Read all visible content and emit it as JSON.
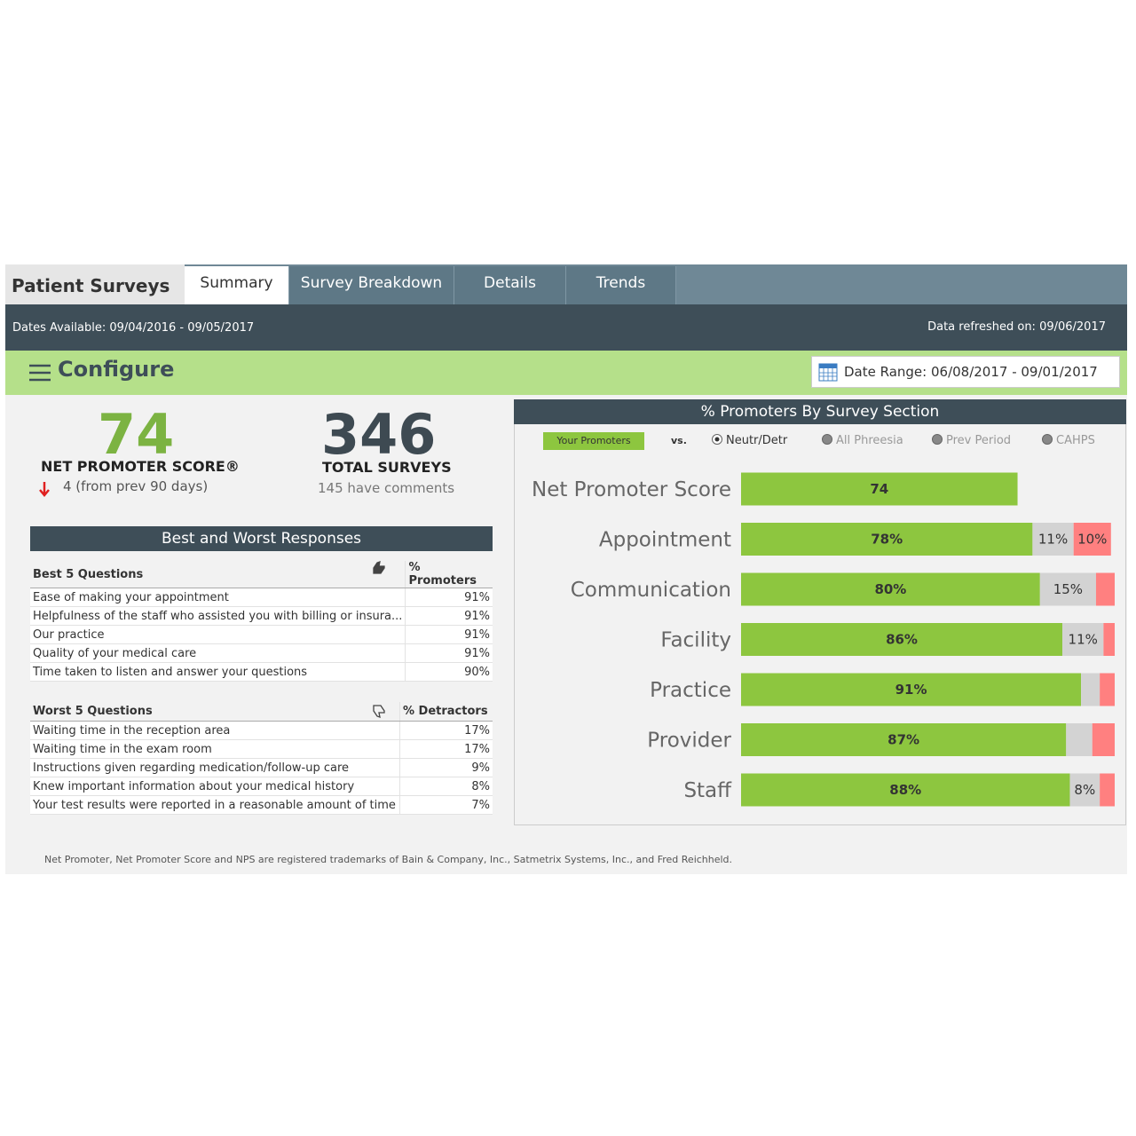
{
  "header": {
    "title": "Patient Surveys",
    "tabs": [
      "Summary",
      "Survey Breakdown",
      "Details",
      "Trends"
    ],
    "active_tab": 0,
    "dates_available": "Dates Available: 09/04/2016 - 09/05/2017",
    "data_refreshed": "Data refreshed on: 09/06/2017"
  },
  "configure": {
    "label": "Configure",
    "date_range": "Date Range: 06/08/2017 - 09/01/2017"
  },
  "kpis": {
    "nps": {
      "value": 74,
      "label": "NET PROMOTER SCORE®",
      "change": "4 (from prev 90 days)"
    },
    "surveys": {
      "value": 346,
      "label": "TOTAL SURVEYS",
      "comments": "145 have comments"
    }
  },
  "responses": {
    "title": "Best and Worst Responses",
    "best": {
      "header": [
        "Best 5 Questions",
        "% Promoters"
      ],
      "rows": [
        [
          "Ease of making your appointment",
          "91%"
        ],
        [
          "Helpfulness of the staff who assisted you with billing or insura...",
          "91%"
        ],
        [
          "Our practice",
          "91%"
        ],
        [
          "Quality of your medical care",
          "91%"
        ],
        [
          "Time taken to listen and answer your questions",
          "90%"
        ]
      ]
    },
    "worst": {
      "header": [
        "Worst 5 Questions",
        "% Detractors"
      ],
      "rows": [
        [
          "Waiting time in the reception area",
          "17%"
        ],
        [
          "Waiting time in the exam room",
          "17%"
        ],
        [
          "Instructions given regarding medication/follow-up care",
          "9%"
        ],
        [
          "Knew important information about your medical history",
          "8%"
        ],
        [
          "Your test results were reported in a reasonable amount of time",
          "7%"
        ]
      ]
    }
  },
  "chart_data": {
    "type": "bar",
    "orientation": "horizontal",
    "stacked": true,
    "title": "% Promoters By Survey Section",
    "legend": {
      "label": "Your Promoters",
      "versus": "vs."
    },
    "options": [
      {
        "label": "Neutr/Detr",
        "selected": true
      },
      {
        "label": "All Phreesia",
        "selected": false
      },
      {
        "label": "Prev Period",
        "selected": false
      },
      {
        "label": "CAHPS",
        "selected": false
      }
    ],
    "categories": [
      "Net Promoter Score",
      "Appointment",
      "Communication",
      "Facility",
      "Practice",
      "Provider",
      "Staff"
    ],
    "xlim": [
      0,
      100
    ],
    "series": [
      {
        "color": "#8dc63f",
        "values": [
          74,
          78,
          80,
          86,
          91,
          87,
          88
        ],
        "value_labels": [
          "74",
          "78%",
          "80%",
          "86%",
          "91%",
          "87%",
          "88%"
        ]
      },
      {
        "color": "#d3d3d3",
        "values": [
          null,
          11,
          15,
          11,
          5,
          7,
          8
        ],
        "value_labels": [
          null,
          "11%",
          "15%",
          "11%",
          null,
          null,
          "8%"
        ]
      },
      {
        "color": "#ff8080",
        "values": [
          null,
          10,
          5,
          3,
          4,
          6,
          4
        ],
        "value_labels": [
          null,
          "10%",
          null,
          null,
          null,
          null,
          null
        ]
      }
    ]
  },
  "footnote": "Net Promoter, Net Promoter Score and NPS are registered trademarks of Bain & Company, Inc., Satmetrix Systems, Inc., and Fred Reichheld."
}
